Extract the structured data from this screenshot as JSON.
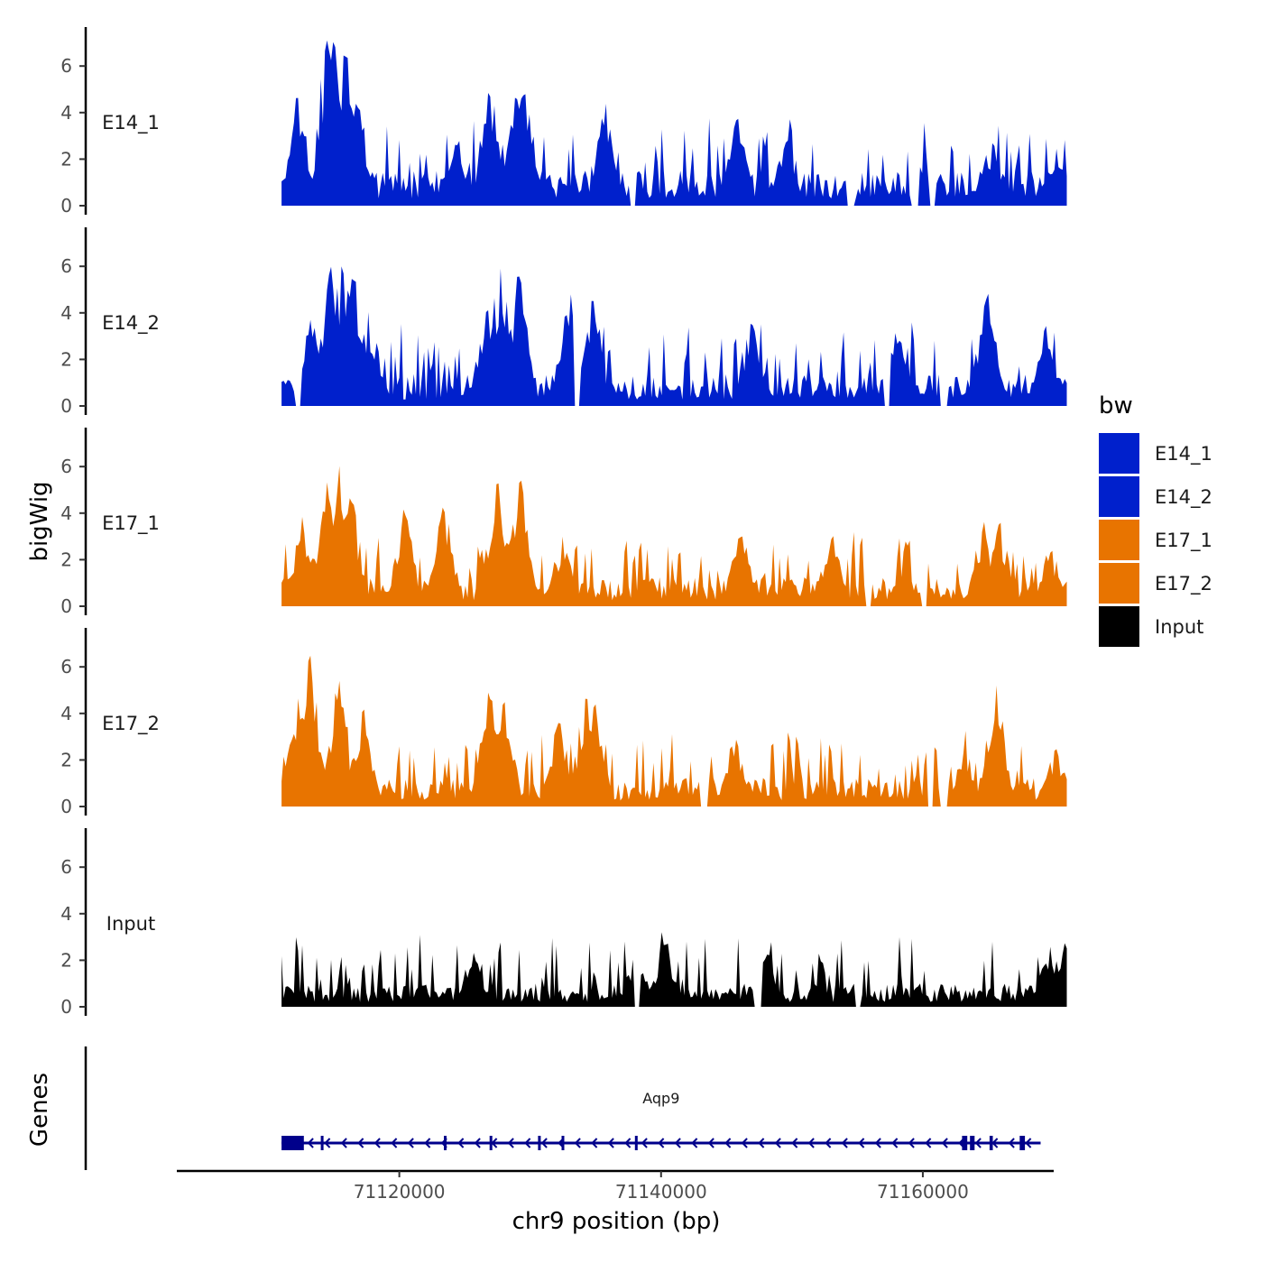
{
  "chart_data": {
    "type": "area",
    "chromosome": "chr9",
    "ylabel": "bigWig",
    "genes_label": "Genes",
    "xlabel": "chr9 position (bp)",
    "xlim": [
      71103000,
      71170000
    ],
    "data_range": [
      71111000,
      71171000
    ],
    "ylim": [
      0,
      7.5
    ],
    "y_ticks": [
      "0",
      "2",
      "4",
      "6"
    ],
    "x_ticks": [
      {
        "value": 71120000,
        "label": "71120000"
      },
      {
        "value": 71140000,
        "label": "71140000"
      },
      {
        "value": 71160000,
        "label": "71160000"
      }
    ],
    "legend": {
      "title": "bw",
      "placement": "right"
    },
    "colors": {
      "E14": "#0020CC",
      "E17": "#E87400",
      "Input": "#000000",
      "gene": "#00008B"
    },
    "series": [
      {
        "name": "E14_1",
        "color": "#0020CC",
        "peaks": [
          [
            71112300,
            4.9
          ],
          [
            71114500,
            7.2
          ],
          [
            71115000,
            7.3
          ],
          [
            71115800,
            6.9
          ],
          [
            71116800,
            4.5
          ],
          [
            71124500,
            2.8
          ],
          [
            71126900,
            5.0
          ],
          [
            71128900,
            4.7
          ],
          [
            71129600,
            5.1
          ],
          [
            71135800,
            4.4
          ],
          [
            71145800,
            3.8
          ],
          [
            71149600,
            2.9
          ],
          [
            71165300,
            2.7
          ],
          [
            71170200,
            2.5
          ]
        ],
        "base": 1.2,
        "noise": 1.3,
        "dips": [
          71137800,
          71154500,
          71159400,
          71160800
        ]
      },
      {
        "name": "E14_2",
        "color": "#0020CC",
        "peaks": [
          [
            71113200,
            3.8
          ],
          [
            71114800,
            6.0
          ],
          [
            71115600,
            6.3
          ],
          [
            71116500,
            5.8
          ],
          [
            71117600,
            4.1
          ],
          [
            71126700,
            4.3
          ],
          [
            71127700,
            6.0
          ],
          [
            71129100,
            5.6
          ],
          [
            71133100,
            4.8
          ],
          [
            71134800,
            4.6
          ],
          [
            71146900,
            3.6
          ],
          [
            71157900,
            3.4
          ],
          [
            71164900,
            4.9
          ],
          [
            71169400,
            3.5
          ]
        ],
        "base": 1.1,
        "noise": 1.3,
        "dips": [
          71112200,
          71133600,
          71157300,
          71161600
        ]
      },
      {
        "name": "E17_1",
        "color": "#E87400",
        "peaks": [
          [
            71112600,
            3.9
          ],
          [
            71114500,
            5.4
          ],
          [
            71115400,
            6.3
          ],
          [
            71116300,
            4.8
          ],
          [
            71120400,
            4.2
          ],
          [
            71123400,
            4.3
          ],
          [
            71127500,
            5.3
          ],
          [
            71129200,
            5.5
          ],
          [
            71132500,
            3.0
          ],
          [
            71146100,
            3.2
          ],
          [
            71153000,
            3.1
          ],
          [
            71164700,
            3.8
          ],
          [
            71165900,
            3.6
          ],
          [
            71169800,
            2.4
          ]
        ],
        "base": 1.0,
        "noise": 1.1,
        "dips": [
          71155800,
          71160100
        ]
      },
      {
        "name": "E17_2",
        "color": "#E87400",
        "peaks": [
          [
            71112300,
            5.0
          ],
          [
            71113200,
            6.5
          ],
          [
            71115400,
            5.5
          ],
          [
            71117200,
            4.3
          ],
          [
            71126900,
            5.0
          ],
          [
            71128000,
            4.6
          ],
          [
            71132200,
            3.7
          ],
          [
            71134300,
            4.8
          ],
          [
            71134900,
            4.6
          ],
          [
            71145700,
            3.0
          ],
          [
            71163200,
            2.4
          ],
          [
            71165600,
            5.3
          ],
          [
            71170100,
            2.5
          ]
        ],
        "base": 1.0,
        "noise": 1.2,
        "dips": [
          71143300,
          71160600,
          71161600
        ]
      },
      {
        "name": "Input",
        "color": "#000000",
        "peaks": [
          [
            71125700,
            2.4
          ],
          [
            71138100,
            2.4
          ],
          [
            71140300,
            2.8
          ],
          [
            71148200,
            2.3
          ],
          [
            71169700,
            2.8
          ],
          [
            71171000,
            2.6
          ]
        ],
        "base": 0.8,
        "noise": 1.2,
        "dips": [
          71138200,
          71147400,
          71155000
        ]
      }
    ],
    "gene": {
      "name": "Aqp9",
      "strand": "-",
      "start": 71111000,
      "end": 71169000,
      "exons": [
        [
          71111000,
          71112700
        ],
        [
          71114000,
          71114150
        ],
        [
          71123400,
          71123550
        ],
        [
          71126900,
          71127050
        ],
        [
          71130600,
          71130750
        ],
        [
          71132400,
          71132550
        ],
        [
          71138000,
          71138150
        ],
        [
          71163000,
          71163400
        ],
        [
          71163600,
          71163950
        ],
        [
          71165100,
          71165350
        ],
        [
          71167400,
          71167800
        ]
      ]
    }
  }
}
